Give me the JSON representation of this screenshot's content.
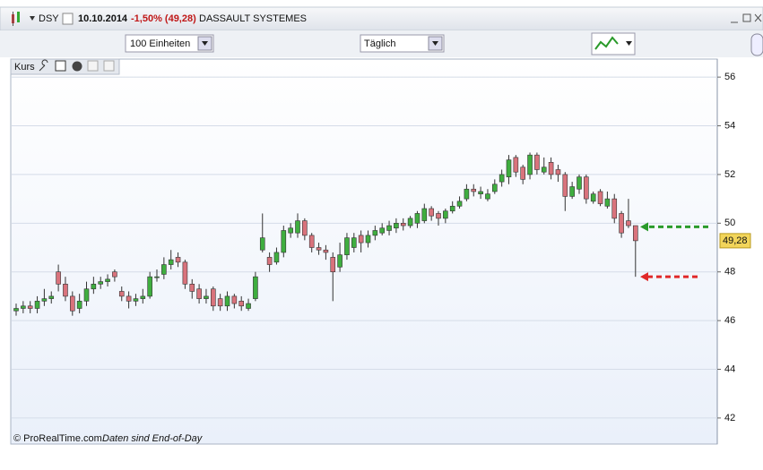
{
  "header": {
    "symbol": "DSY",
    "date": "10.10.2014",
    "change": "-1,50% (49,28)",
    "name": "DASSAULT SYSTEMES"
  },
  "toolbar": {
    "units": "100 Einheiten",
    "period": "Täglich"
  },
  "panel": {
    "tab": "Kurs"
  },
  "footer": {
    "copyright": "© ProRealTime.com",
    "note": "Daten sind End-of-Day"
  },
  "chart_data": {
    "type": "candlestick",
    "open": [
      46.4,
      46.5,
      46.6,
      46.5,
      46.8,
      46.9,
      48.0,
      47.5,
      47.0,
      46.5,
      46.8,
      47.3,
      47.5,
      47.6,
      48.0,
      47.2,
      47.0,
      46.8,
      46.9,
      47.0,
      47.8,
      47.9,
      48.3,
      48.6,
      48.4,
      47.5,
      47.3,
      46.9,
      47.3,
      46.9,
      46.6,
      47.0,
      46.8,
      46.5,
      46.9,
      48.9,
      48.6,
      48.4,
      48.8,
      49.6,
      49.6,
      50.1,
      49.5,
      49.0,
      48.9,
      48.6,
      48.2,
      48.7,
      49.0,
      49.5,
      49.2,
      49.5,
      49.6,
      49.7,
      49.8,
      50.0,
      49.9,
      50.0,
      50.1,
      50.6,
      50.4,
      50.2,
      50.5,
      50.7,
      51.0,
      51.4,
      51.2,
      51.0,
      51.3,
      51.7,
      51.9,
      52.7,
      52.3,
      52.0,
      52.8,
      52.1,
      52.5,
      52.2,
      52.0,
      51.1,
      51.4,
      51.9,
      50.9,
      51.3,
      50.7,
      51.0,
      50.4,
      50.1,
      49.9
    ],
    "high": [
      46.7,
      46.8,
      46.8,
      47.0,
      47.3,
      47.2,
      48.3,
      47.8,
      47.2,
      47.1,
      47.6,
      47.8,
      47.8,
      47.9,
      48.1,
      47.4,
      47.2,
      47.1,
      47.3,
      48.0,
      48.1,
      48.6,
      48.9,
      48.8,
      48.5,
      47.7,
      47.5,
      47.3,
      47.4,
      47.1,
      47.2,
      47.1,
      47.0,
      46.9,
      48.0,
      50.4,
      48.8,
      49.0,
      49.9,
      50.0,
      50.4,
      50.2,
      49.6,
      49.2,
      49.1,
      48.8,
      49.2,
      49.6,
      49.6,
      49.7,
      49.7,
      49.9,
      50.0,
      50.1,
      50.2,
      50.2,
      50.3,
      50.5,
      50.8,
      50.7,
      50.5,
      50.6,
      50.9,
      51.1,
      51.6,
      51.6,
      51.5,
      51.4,
      51.8,
      52.2,
      52.8,
      52.8,
      52.4,
      52.9,
      52.9,
      52.7,
      52.7,
      52.4,
      52.1,
      51.7,
      52.0,
      52.0,
      51.3,
      51.4,
      51.3,
      51.2,
      50.5,
      51.0,
      49.9
    ],
    "low": [
      46.2,
      46.3,
      46.3,
      46.3,
      46.6,
      46.7,
      47.2,
      46.8,
      46.2,
      46.3,
      46.6,
      47.1,
      47.3,
      47.4,
      47.6,
      46.8,
      46.5,
      46.6,
      46.7,
      46.9,
      47.6,
      47.7,
      48.1,
      48.2,
      47.3,
      46.9,
      46.7,
      46.7,
      46.4,
      46.4,
      46.4,
      46.5,
      46.4,
      46.4,
      46.8,
      48.8,
      48.0,
      48.3,
      48.6,
      49.4,
      49.4,
      49.3,
      48.8,
      48.7,
      48.5,
      46.8,
      48.0,
      48.5,
      48.8,
      48.8,
      49.0,
      49.3,
      49.5,
      49.5,
      49.6,
      49.7,
      49.8,
      49.8,
      50.0,
      50.1,
      49.9,
      50.0,
      50.4,
      50.6,
      50.9,
      51.1,
      51.0,
      50.9,
      51.2,
      51.5,
      51.6,
      51.9,
      51.6,
      51.8,
      52.0,
      52.0,
      51.8,
      51.7,
      50.5,
      51.0,
      51.2,
      50.8,
      50.8,
      50.7,
      50.6,
      50.0,
      49.4,
      49.8,
      47.8
    ],
    "close": [
      46.5,
      46.6,
      46.5,
      46.8,
      46.9,
      47.0,
      47.5,
      47.0,
      46.4,
      46.8,
      47.3,
      47.5,
      47.6,
      47.7,
      47.8,
      47.0,
      46.8,
      46.9,
      47.0,
      47.8,
      47.8,
      48.3,
      48.5,
      48.4,
      47.5,
      47.2,
      46.9,
      47.0,
      46.6,
      46.6,
      47.0,
      46.7,
      46.6,
      46.7,
      47.8,
      49.4,
      48.3,
      48.8,
      49.7,
      49.8,
      50.1,
      49.5,
      49.0,
      48.9,
      48.8,
      48.0,
      48.7,
      49.4,
      49.4,
      49.2,
      49.5,
      49.7,
      49.8,
      49.9,
      50.0,
      49.9,
      50.2,
      50.4,
      50.6,
      50.3,
      50.2,
      50.5,
      50.7,
      50.9,
      51.4,
      51.3,
      51.3,
      51.2,
      51.6,
      52.0,
      52.6,
      52.1,
      51.8,
      52.8,
      52.2,
      52.3,
      52.0,
      52.0,
      51.1,
      51.5,
      51.9,
      51.0,
      51.2,
      50.8,
      51.0,
      50.2,
      49.6,
      49.9,
      49.28
    ],
    "up_color": "#3fae3f",
    "down_color": "#d9737c",
    "ylim": [
      40.93,
      56.74
    ],
    "yticks": [
      42,
      44,
      46,
      48,
      50,
      52,
      54,
      56
    ],
    "grid": true,
    "last_price": {
      "value": 49.28,
      "label": "49,28"
    },
    "markers": [
      {
        "value": 49.85,
        "color": "#2a9a2a"
      },
      {
        "value": 47.8,
        "color": "#e02828"
      }
    ]
  }
}
